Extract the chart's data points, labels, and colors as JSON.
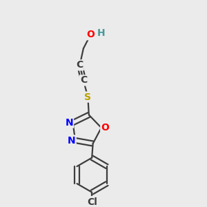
{
  "background_color": "#ebebeb",
  "atom_colors": {
    "C": "#3d3d3d",
    "H": "#4a9999",
    "O": "#ff0000",
    "N": "#0000ff",
    "S": "#b8a000",
    "Cl": "#3d3d3d"
  },
  "bond_color": "#3d3d3d",
  "bond_width": 1.6,
  "font_size_atoms": 10,
  "xlim": [
    0.05,
    0.95
  ],
  "ylim": [
    0.02,
    0.98
  ]
}
